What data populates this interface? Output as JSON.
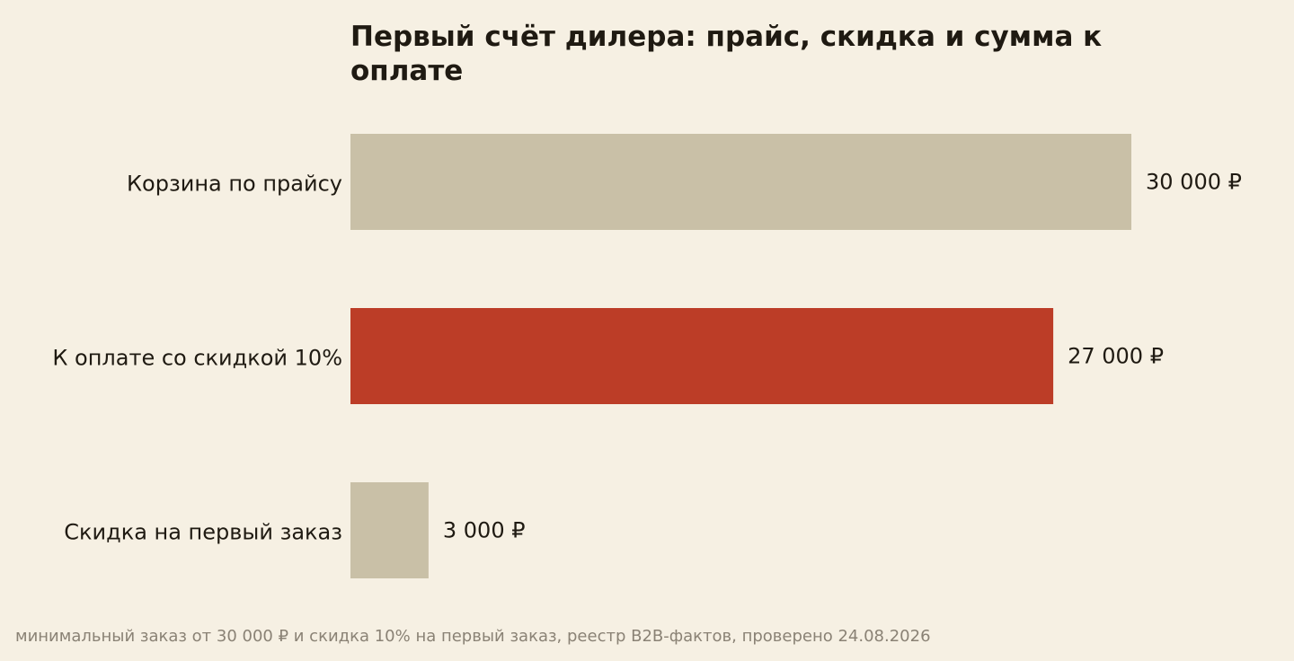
{
  "chart_data": {
    "type": "bar",
    "orientation": "horizontal",
    "title_lines": [
      "Первый счёт дилера: прайс, скидка и сумма к",
      "оплате"
    ],
    "categories": [
      "Корзина по прайсу",
      "К оплате со скидкой 10%",
      "Скидка на первый заказ"
    ],
    "values": [
      30000,
      27000,
      3000
    ],
    "value_labels": [
      "30 000 ₽",
      "27 000 ₽",
      "3 000 ₽"
    ],
    "unit": "₽",
    "xlim": [
      0,
      30000
    ],
    "highlight_index": 1,
    "grid": false,
    "legend": "none",
    "xlabel": "",
    "ylabel": ""
  },
  "colors": {
    "background": "#f6f0e3",
    "bar_default": "#c9c0a7",
    "bar_highlight": "#bc3d27",
    "text": "#1f1a12",
    "footnote": "#8a8275"
  },
  "footnote": "минимальный заказ от 30 000 ₽ и скидка 10% на первый заказ, реестр B2B-фактов, проверено 24.08.2026"
}
